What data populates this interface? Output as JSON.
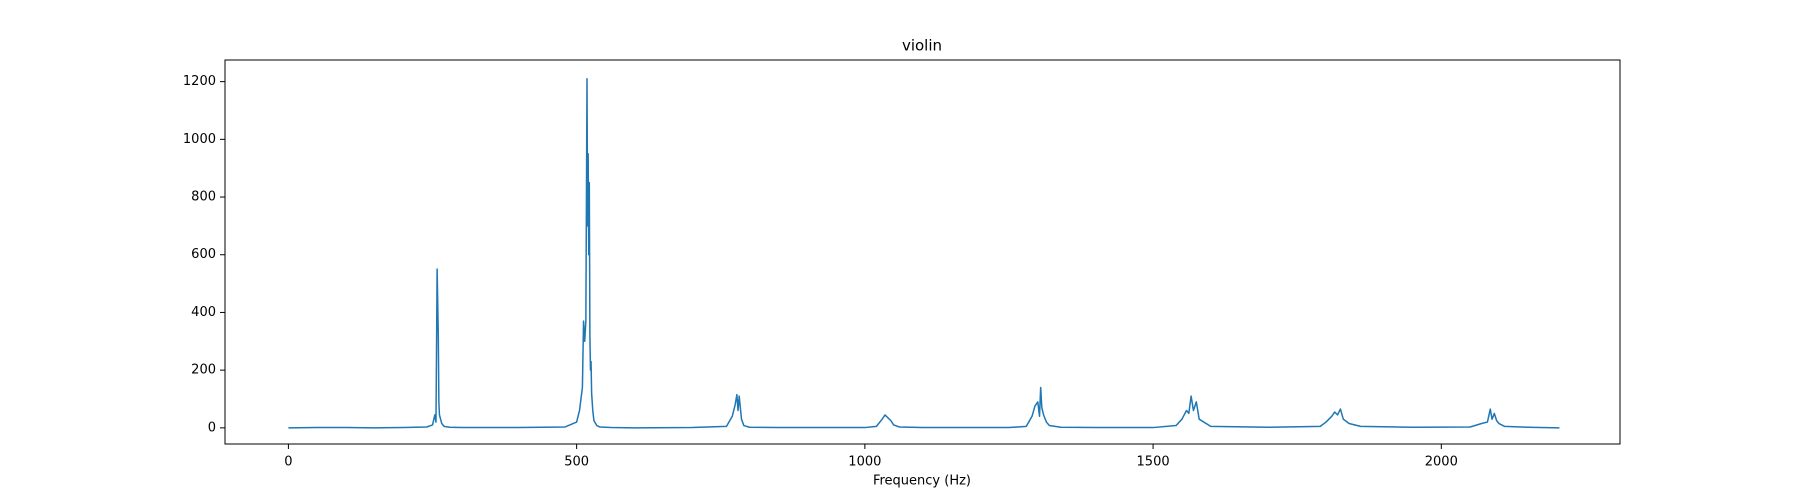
{
  "chart_data": {
    "type": "line",
    "title": "violin",
    "x_label": "Frequency (Hz)",
    "x": [
      0,
      50,
      100,
      150,
      200,
      240,
      250,
      254,
      256,
      258,
      260,
      261,
      262,
      264,
      266,
      270,
      280,
      300,
      400,
      480,
      500,
      505,
      510,
      512,
      514,
      516,
      518,
      519,
      520,
      521,
      522,
      523,
      524,
      525,
      526,
      528,
      530,
      535,
      540,
      560,
      600,
      700,
      760,
      770,
      775,
      778,
      780,
      782,
      784,
      786,
      790,
      800,
      850,
      1000,
      1020,
      1030,
      1035,
      1040,
      1045,
      1050,
      1060,
      1100,
      1250,
      1280,
      1290,
      1295,
      1300,
      1303,
      1305,
      1307,
      1310,
      1315,
      1320,
      1340,
      1400,
      1500,
      1540,
      1550,
      1558,
      1562,
      1566,
      1570,
      1575,
      1580,
      1600,
      1700,
      1790,
      1800,
      1810,
      1815,
      1820,
      1825,
      1830,
      1840,
      1860,
      1950,
      2050,
      2070,
      2080,
      2085,
      2088,
      2092,
      2096,
      2100,
      2110,
      2150,
      2205
    ],
    "values": [
      0,
      1,
      1,
      0,
      1,
      3,
      10,
      45,
      20,
      550,
      320,
      90,
      45,
      30,
      15,
      5,
      2,
      1,
      1,
      3,
      20,
      60,
      140,
      370,
      300,
      370,
      1210,
      700,
      950,
      600,
      850,
      320,
      200,
      230,
      120,
      60,
      25,
      8,
      3,
      1,
      0,
      1,
      5,
      40,
      80,
      115,
      60,
      110,
      70,
      30,
      8,
      2,
      1,
      1,
      5,
      30,
      45,
      35,
      25,
      10,
      3,
      1,
      1,
      5,
      40,
      75,
      90,
      40,
      140,
      70,
      45,
      20,
      8,
      2,
      1,
      1,
      8,
      30,
      60,
      50,
      110,
      60,
      90,
      30,
      5,
      2,
      5,
      20,
      40,
      55,
      45,
      65,
      30,
      15,
      5,
      2,
      3,
      15,
      20,
      65,
      30,
      50,
      25,
      15,
      5,
      2,
      0
    ],
    "color": "#1f77b4",
    "xlim": [
      -110,
      2310
    ],
    "ylim": [
      -56,
      1275
    ],
    "xticks": [
      0,
      500,
      1000,
      1500,
      2000
    ],
    "yticks": [
      0,
      200,
      400,
      600,
      800,
      1000,
      1200
    ],
    "grid": false
  }
}
